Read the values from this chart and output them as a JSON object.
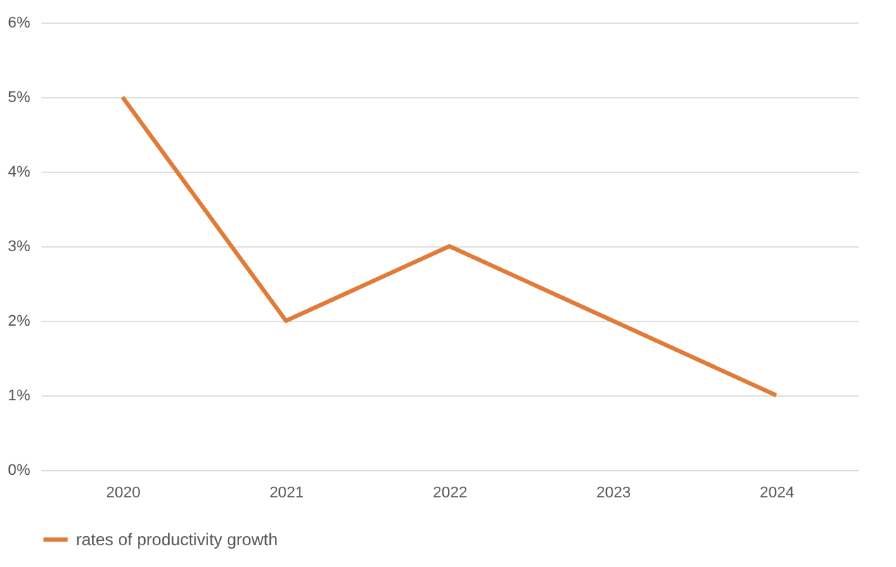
{
  "chart_data": {
    "type": "line",
    "categories": [
      "2020",
      "2021",
      "2022",
      "2023",
      "2024"
    ],
    "series": [
      {
        "name": "rates of productivity growth",
        "color": "#e07b39",
        "values": [
          5,
          2,
          3,
          2,
          1
        ]
      }
    ],
    "ylim": [
      0,
      6
    ],
    "yticks": [
      {
        "value": 0,
        "label": "0%"
      },
      {
        "value": 1,
        "label": "1%"
      },
      {
        "value": 2,
        "label": "2%"
      },
      {
        "value": 3,
        "label": "3%"
      },
      {
        "value": 4,
        "label": "4%"
      },
      {
        "value": 5,
        "label": "5%"
      },
      {
        "value": 6,
        "label": "6%"
      }
    ],
    "grid": "y",
    "legend": "bottom",
    "marker": "none",
    "line_style": "solid"
  }
}
